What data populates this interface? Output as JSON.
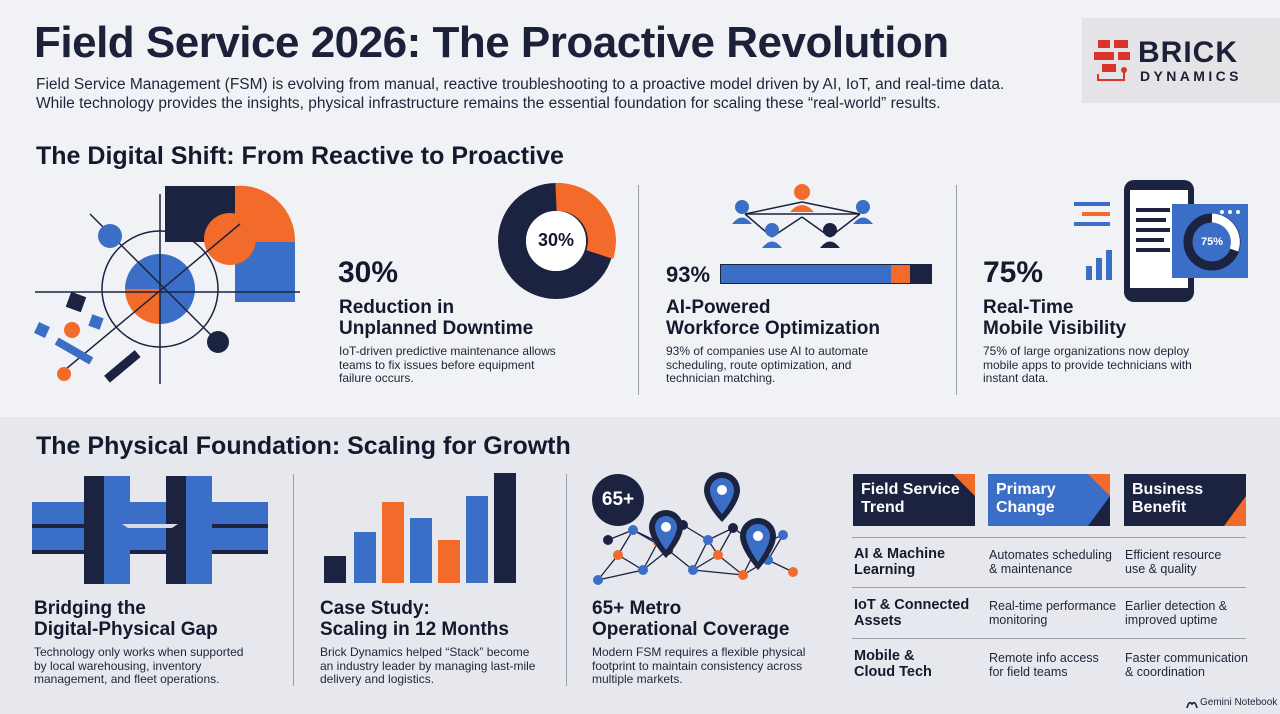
{
  "header": {
    "title": "Field Service 2026: The Proactive Revolution",
    "intro_line1": "Field Service Management (FSM) is evolving from manual, reactive troubleshooting to a proactive model driven by AI, IoT, and real-time data.",
    "intro_line2": "While technology provides the insights, physical infrastructure remains the essential foundation for scaling these “real-world” results."
  },
  "logo": {
    "word1": "BRICK",
    "word2": "DYNAMICS"
  },
  "digital": {
    "heading": "The Digital Shift: From Reactive to Proactive",
    "cards": [
      {
        "value": "30%",
        "donut_label": "30%",
        "title_line1": "Reduction in",
        "title_line2": "Unplanned Downtime",
        "desc": [
          "IoT-driven predictive maintenance allows",
          "teams to fix issues before equipment",
          "failure occurs."
        ]
      },
      {
        "value": "93%",
        "title_line1": "AI-Powered",
        "title_line2": "Workforce Optimization",
        "desc": [
          "93% of companies use AI to automate",
          "scheduling, route optimization, and",
          "technician matching."
        ]
      },
      {
        "value": "75%",
        "phone_label": "75%",
        "title_line1": "Real-Time",
        "title_line2": "Mobile Visibility",
        "desc": [
          "75% of large organizations now deploy",
          "mobile apps to provide technicians with",
          "instant data."
        ]
      }
    ]
  },
  "physical": {
    "heading": "The Physical Foundation: Scaling for Growth",
    "cards": [
      {
        "title_line1": "Bridging the",
        "title_line2": "Digital-Physical Gap",
        "desc": [
          "Technology only works when supported",
          "by local warehousing, inventory",
          "management, and fleet operations."
        ]
      },
      {
        "title_line1": "Case Study:",
        "title_line2": "Scaling in 12 Months",
        "desc": [
          "Brick Dynamics helped “Stack” become",
          "an industry leader by managing last-mile",
          "delivery and logistics."
        ]
      },
      {
        "badge": "65+",
        "title_line1": "65+ Metro",
        "title_line2": "Operational Coverage",
        "desc": [
          "Modern FSM requires a flexible physical",
          "footprint to maintain consistency across",
          "multiple markets."
        ]
      }
    ]
  },
  "table": {
    "headers": [
      {
        "line1": "Field Service",
        "line2": "Trend"
      },
      {
        "line1": "Primary",
        "line2": "Change"
      },
      {
        "line1": "Business",
        "line2": "Benefit"
      }
    ],
    "rows": [
      {
        "trend1": "AI & Machine",
        "trend2": "Learning",
        "change1": "Automates scheduling",
        "change2": "& maintenance",
        "benefit1": "Efficient resource",
        "benefit2": "use & quality"
      },
      {
        "trend1": "IoT & Connected",
        "trend2": "Assets",
        "change1": "Real-time performance",
        "change2": "monitoring",
        "benefit1": "Earlier detection &",
        "benefit2": "improved uptime"
      },
      {
        "trend1": "Mobile &",
        "trend2": "Cloud Tech",
        "change1": "Remote info access",
        "change2": "for field teams",
        "benefit1": "Faster communication",
        "benefit2": "& coordination"
      }
    ]
  },
  "footer": {
    "credit": "Gemini Notebook"
  },
  "colors": {
    "navy": "#1b2340",
    "blue": "#3b6fc7",
    "orange": "#f26b2a",
    "table_header": "#1b2340"
  }
}
